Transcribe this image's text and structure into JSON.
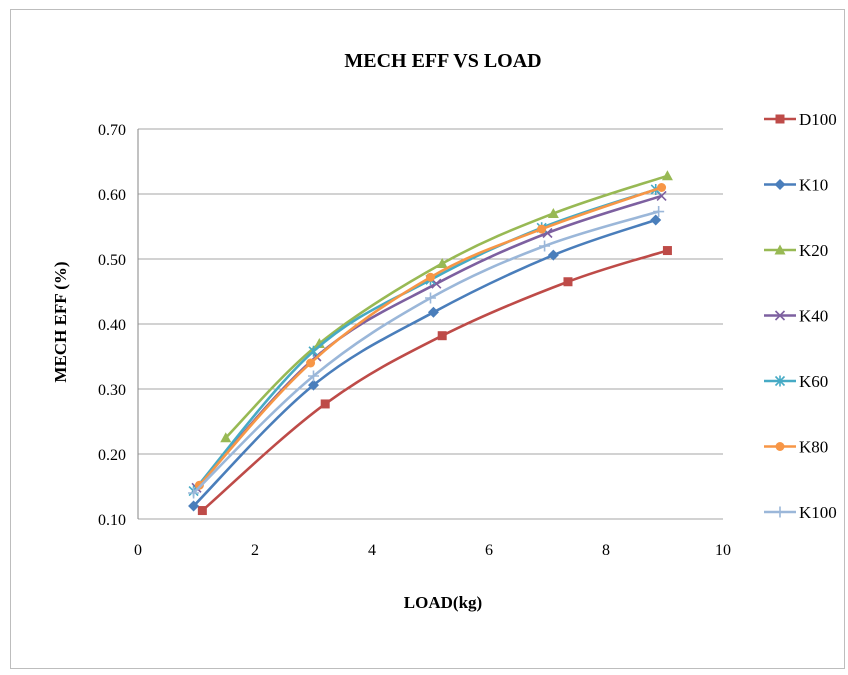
{
  "chart_data": {
    "type": "line",
    "title": "MECH EFF VS LOAD",
    "xlabel": "LOAD(kg)",
    "ylabel": "MECH EFF (%)",
    "xlim": [
      0,
      10
    ],
    "ylim": [
      0.1,
      0.7
    ],
    "x_ticks": [
      "0",
      "2",
      "4",
      "6",
      "8",
      "10"
    ],
    "y_ticks": [
      "0.10",
      "0.20",
      "0.30",
      "0.40",
      "0.50",
      "0.60",
      "0.70"
    ],
    "grid": "horizontal",
    "legend_position": "right",
    "series": [
      {
        "name": "D100",
        "color": "#be4b48",
        "marker": "square",
        "x": [
          1.1,
          3.2,
          5.2,
          7.35,
          9.05
        ],
        "y": [
          0.113,
          0.277,
          0.382,
          0.465,
          0.513
        ]
      },
      {
        "name": "K10",
        "color": "#4a7ebb",
        "marker": "diamond",
        "x": [
          0.95,
          3.0,
          5.05,
          7.1,
          8.85
        ],
        "y": [
          0.12,
          0.306,
          0.418,
          0.506,
          0.56
        ]
      },
      {
        "name": "K20",
        "color": "#98b954",
        "marker": "triangle",
        "x": [
          1.5,
          3.1,
          5.2,
          7.1,
          9.05
        ],
        "y": [
          0.225,
          0.37,
          0.493,
          0.57,
          0.628
        ]
      },
      {
        "name": "K40",
        "color": "#7d60a0",
        "marker": "x",
        "x": [
          1.0,
          3.05,
          5.1,
          7.0,
          8.95
        ],
        "y": [
          0.148,
          0.35,
          0.462,
          0.54,
          0.597
        ]
      },
      {
        "name": "K60",
        "color": "#46aac5",
        "marker": "asterisk",
        "x": [
          0.95,
          3.0,
          5.0,
          6.9,
          8.85
        ],
        "y": [
          0.143,
          0.358,
          0.468,
          0.548,
          0.607
        ]
      },
      {
        "name": "K80",
        "color": "#f79646",
        "marker": "circle",
        "x": [
          1.05,
          2.95,
          5.0,
          6.9,
          8.95
        ],
        "y": [
          0.152,
          0.34,
          0.472,
          0.546,
          0.61
        ]
      },
      {
        "name": "K100",
        "color": "#9bb7d9",
        "marker": "plus",
        "x": [
          0.95,
          3.0,
          5.0,
          6.95,
          8.9
        ],
        "y": [
          0.14,
          0.32,
          0.44,
          0.52,
          0.573
        ]
      }
    ]
  }
}
